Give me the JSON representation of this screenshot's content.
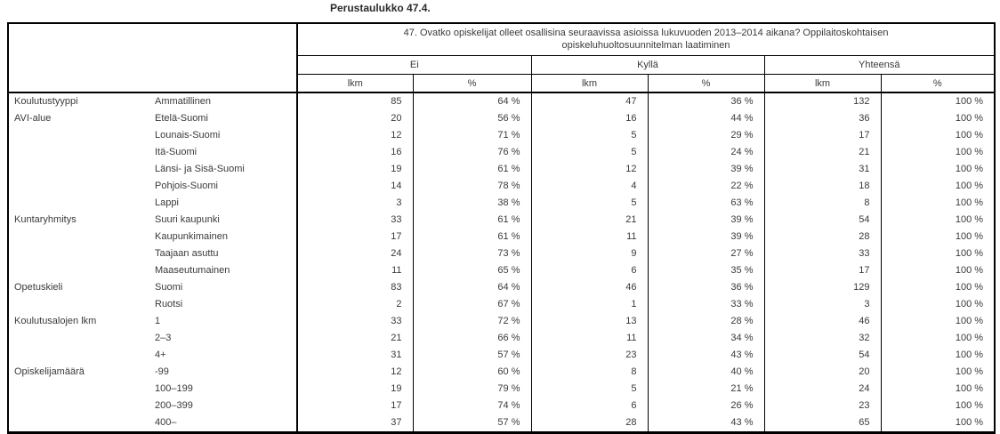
{
  "page_title": "Perustaulukko 47.4.",
  "colors": {
    "background": "#ffffff",
    "border": "#000000",
    "text": "#3a3a3a"
  },
  "table": {
    "question_header": "47. Ovatko opiskelijat olleet osallisina seuraavissa asioissa lukuvuoden 2013–2014 aikana? Oppilaitoskohtaisen opiskeluhuoltosuunnitelman laatiminen",
    "columns": [
      {
        "label": "Ei",
        "sub": [
          "lkm",
          "%"
        ]
      },
      {
        "label": "Kyllä",
        "sub": [
          "lkm",
          "%"
        ]
      },
      {
        "label": "Yhteensä",
        "sub": [
          "lkm",
          "%"
        ]
      }
    ],
    "rows": [
      {
        "group": "Koulutustyyppi",
        "category": "Ammatillinen",
        "ei_lkm": "85",
        "ei_pct": "64 %",
        "kylla_lkm": "47",
        "kylla_pct": "36 %",
        "yht_lkm": "132",
        "yht_pct": "100 %"
      },
      {
        "group": "AVI-alue",
        "category": "Etelä-Suomi",
        "ei_lkm": "20",
        "ei_pct": "56 %",
        "kylla_lkm": "16",
        "kylla_pct": "44 %",
        "yht_lkm": "36",
        "yht_pct": "100 %"
      },
      {
        "group": "",
        "category": "Lounais-Suomi",
        "ei_lkm": "12",
        "ei_pct": "71 %",
        "kylla_lkm": "5",
        "kylla_pct": "29 %",
        "yht_lkm": "17",
        "yht_pct": "100 %"
      },
      {
        "group": "",
        "category": "Itä-Suomi",
        "ei_lkm": "16",
        "ei_pct": "76 %",
        "kylla_lkm": "5",
        "kylla_pct": "24 %",
        "yht_lkm": "21",
        "yht_pct": "100 %"
      },
      {
        "group": "",
        "category": "Länsi- ja Sisä-Suomi",
        "ei_lkm": "19",
        "ei_pct": "61 %",
        "kylla_lkm": "12",
        "kylla_pct": "39 %",
        "yht_lkm": "31",
        "yht_pct": "100 %"
      },
      {
        "group": "",
        "category": "Pohjois-Suomi",
        "ei_lkm": "14",
        "ei_pct": "78 %",
        "kylla_lkm": "4",
        "kylla_pct": "22 %",
        "yht_lkm": "18",
        "yht_pct": "100 %"
      },
      {
        "group": "",
        "category": "Lappi",
        "ei_lkm": "3",
        "ei_pct": "38 %",
        "kylla_lkm": "5",
        "kylla_pct": "63 %",
        "yht_lkm": "8",
        "yht_pct": "100 %"
      },
      {
        "group": "Kuntaryhmitys",
        "category": "Suuri kaupunki",
        "ei_lkm": "33",
        "ei_pct": "61 %",
        "kylla_lkm": "21",
        "kylla_pct": "39 %",
        "yht_lkm": "54",
        "yht_pct": "100 %"
      },
      {
        "group": "",
        "category": "Kaupunkimainen",
        "ei_lkm": "17",
        "ei_pct": "61 %",
        "kylla_lkm": "11",
        "kylla_pct": "39 %",
        "yht_lkm": "28",
        "yht_pct": "100 %"
      },
      {
        "group": "",
        "category": "Taajaan asuttu",
        "ei_lkm": "24",
        "ei_pct": "73 %",
        "kylla_lkm": "9",
        "kylla_pct": "27 %",
        "yht_lkm": "33",
        "yht_pct": "100 %"
      },
      {
        "group": "",
        "category": "Maaseutumainen",
        "ei_lkm": "11",
        "ei_pct": "65 %",
        "kylla_lkm": "6",
        "kylla_pct": "35 %",
        "yht_lkm": "17",
        "yht_pct": "100 %"
      },
      {
        "group": "Opetuskieli",
        "category": "Suomi",
        "ei_lkm": "83",
        "ei_pct": "64 %",
        "kylla_lkm": "46",
        "kylla_pct": "36 %",
        "yht_lkm": "129",
        "yht_pct": "100 %"
      },
      {
        "group": "",
        "category": "Ruotsi",
        "ei_lkm": "2",
        "ei_pct": "67 %",
        "kylla_lkm": "1",
        "kylla_pct": "33 %",
        "yht_lkm": "3",
        "yht_pct": "100 %"
      },
      {
        "group": "Koulutusalojen lkm",
        "category": "1",
        "ei_lkm": "33",
        "ei_pct": "72 %",
        "kylla_lkm": "13",
        "kylla_pct": "28 %",
        "yht_lkm": "46",
        "yht_pct": "100 %"
      },
      {
        "group": "",
        "category": "2–3",
        "ei_lkm": "21",
        "ei_pct": "66 %",
        "kylla_lkm": "11",
        "kylla_pct": "34 %",
        "yht_lkm": "32",
        "yht_pct": "100 %"
      },
      {
        "group": "",
        "category": "4+",
        "ei_lkm": "31",
        "ei_pct": "57 %",
        "kylla_lkm": "23",
        "kylla_pct": "43 %",
        "yht_lkm": "54",
        "yht_pct": "100 %"
      },
      {
        "group": "Opiskelijamäärä",
        "category": "-99",
        "ei_lkm": "12",
        "ei_pct": "60 %",
        "kylla_lkm": "8",
        "kylla_pct": "40 %",
        "yht_lkm": "20",
        "yht_pct": "100 %"
      },
      {
        "group": "",
        "category": "100–199",
        "ei_lkm": "19",
        "ei_pct": "79 %",
        "kylla_lkm": "5",
        "kylla_pct": "21 %",
        "yht_lkm": "24",
        "yht_pct": "100 %"
      },
      {
        "group": "",
        "category": "200–399",
        "ei_lkm": "17",
        "ei_pct": "74 %",
        "kylla_lkm": "6",
        "kylla_pct": "26 %",
        "yht_lkm": "23",
        "yht_pct": "100 %"
      },
      {
        "group": "",
        "category": "400–",
        "ei_lkm": "37",
        "ei_pct": "57 %",
        "kylla_lkm": "28",
        "kylla_pct": "43 %",
        "yht_lkm": "65",
        "yht_pct": "100 %"
      }
    ]
  }
}
